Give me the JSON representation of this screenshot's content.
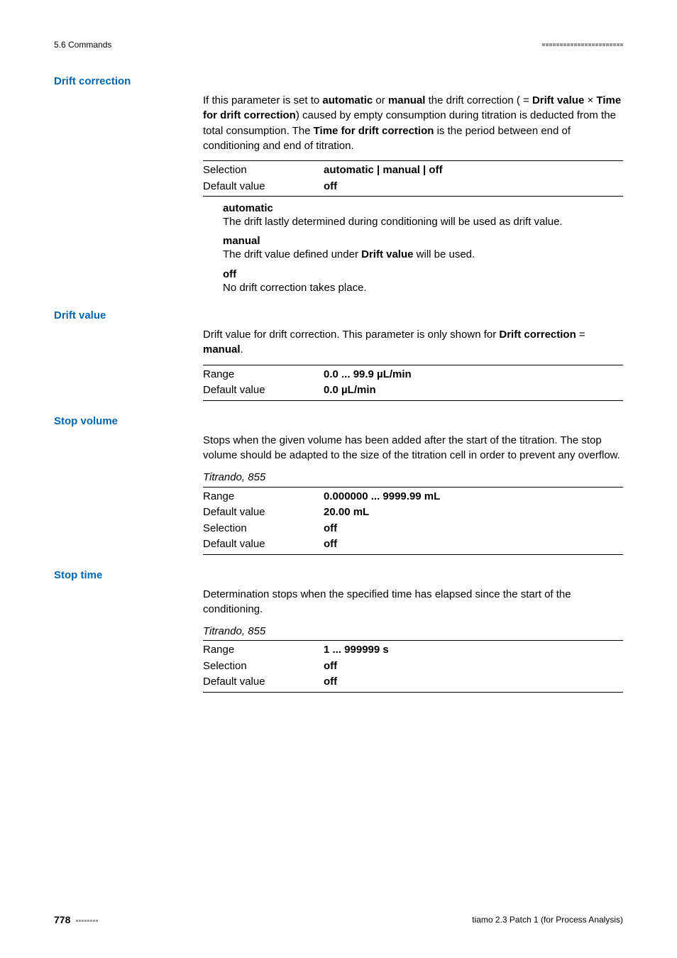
{
  "header": {
    "left": "5.6 Commands"
  },
  "sections": [
    {
      "label": "Drift correction",
      "para_segments": [
        {
          "t": "If this parameter is set to "
        },
        {
          "t": "automatic",
          "bold": true
        },
        {
          "t": " or "
        },
        {
          "t": "manual",
          "bold": true
        },
        {
          "t": " the drift correction ( = "
        },
        {
          "t": "Drift value",
          "bold": true
        },
        {
          "t": " × "
        },
        {
          "t": "Time for drift correction",
          "bold": true
        },
        {
          "t": ") caused by empty consumption during titration is deducted from the total consumption. The "
        },
        {
          "t": "Time for drift correction",
          "bold": true
        },
        {
          "t": " is the period between end of conditioning and end of titration."
        }
      ],
      "kv": [
        {
          "label": "Selection",
          "value": "automatic | manual | off",
          "bold": true
        },
        {
          "label": "Default value",
          "value": "off",
          "bold": true
        }
      ],
      "defs": [
        {
          "term": "automatic",
          "desc": "The drift lastly determined during conditioning will be used as drift value."
        },
        {
          "term": "manual",
          "desc_segments": [
            {
              "t": "The drift value defined under "
            },
            {
              "t": "Drift value",
              "bold": true
            },
            {
              "t": " will be used."
            }
          ]
        },
        {
          "term": "off",
          "desc": "No drift correction takes place."
        }
      ]
    },
    {
      "label": "Drift value",
      "para_segments": [
        {
          "t": "Drift value for drift correction. This parameter is only shown for "
        },
        {
          "t": "Drift correction",
          "bold": true
        },
        {
          "t": " = "
        },
        {
          "t": "manual",
          "bold": true
        },
        {
          "t": "."
        }
      ],
      "kv": [
        {
          "label": "Range",
          "value": "0.0 ... 99.9 µL/min",
          "bold": true
        },
        {
          "label": "Default value",
          "value": "0.0 µL/min",
          "bold": true
        }
      ]
    },
    {
      "label": "Stop volume",
      "para_segments": [
        {
          "t": "Stops when the given volume has been added after the start of the titration. The stop volume should be adapted to the size of the titration cell in order to prevent any overflow."
        }
      ],
      "context": "Titrando, 855",
      "kv": [
        {
          "label": "Range",
          "value": "0.000000 ... 9999.99 mL",
          "bold": true
        },
        {
          "label": "Default value",
          "value": "20.00 mL",
          "bold": true
        },
        {
          "label": "Selection",
          "value": "off",
          "bold": true
        },
        {
          "label": "Default value",
          "value": "off",
          "bold": true
        }
      ]
    },
    {
      "label": "Stop time",
      "para_segments": [
        {
          "t": "Determination stops when the specified time has elapsed since the start of the conditioning."
        }
      ],
      "context": "Titrando, 855",
      "kv": [
        {
          "label": "Range",
          "value": "1 ... 999999 s",
          "bold": true
        },
        {
          "label": "Selection",
          "value": "off",
          "bold": true
        },
        {
          "label": "Default value",
          "value": "off",
          "bold": true
        }
      ]
    }
  ],
  "footer": {
    "page": "778",
    "right": "tiamo 2.3 Patch 1 (for Process Analysis)"
  }
}
